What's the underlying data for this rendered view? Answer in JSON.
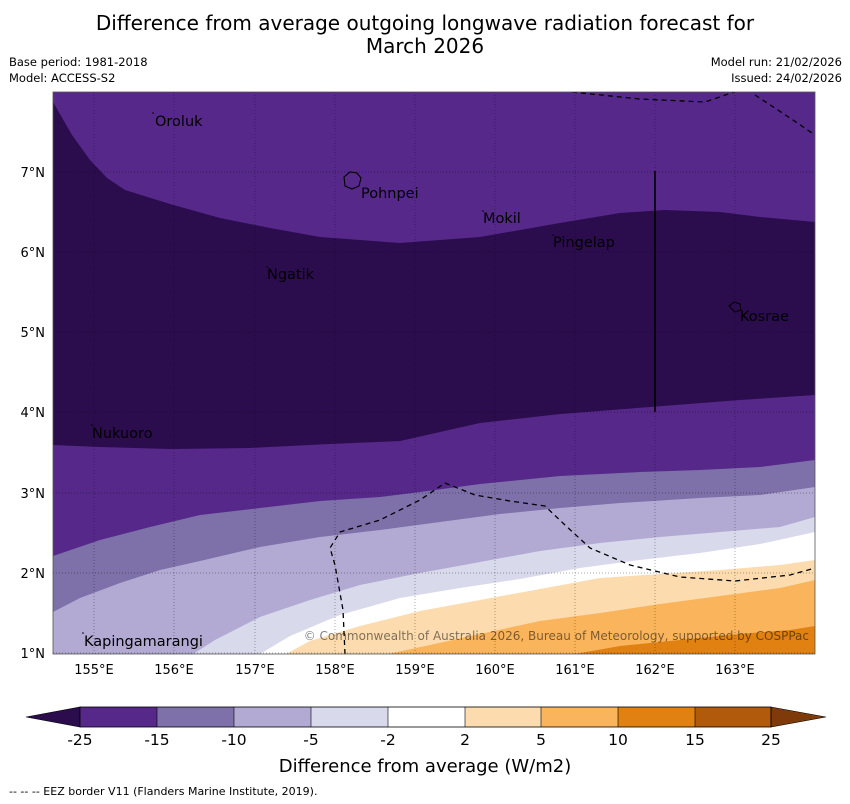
{
  "header": {
    "title_line1": "Difference from average outgoing longwave radiation forecast for",
    "title_line2": "March 2026",
    "base_period": "Base period: 1981-2018",
    "model": "Model: ACCESS-S2",
    "model_run": "Model run: 21/02/2026",
    "issued": "Issued: 24/02/2026"
  },
  "map": {
    "lat_labels": [
      "7°N",
      "6°N",
      "5°N",
      "4°N",
      "3°N",
      "2°N",
      "1°N"
    ],
    "lon_labels": [
      "155°E",
      "156°E",
      "157°E",
      "158°E",
      "159°E",
      "160°E",
      "161°E",
      "162°E",
      "163°E"
    ],
    "places": [
      "Oroluk",
      "Pohnpei",
      "Mokil",
      "Pingelap",
      "Ngatik",
      "Kosrae",
      "Nukuoro",
      "Kapingamarangi"
    ],
    "copyright": "© Commonwealth of Australia 2026, Bureau of Meteorology, supported by COSPPac"
  },
  "colorbar": {
    "ticks": [
      "-25",
      "-15",
      "-10",
      "-5",
      "-2",
      "2",
      "5",
      "10",
      "15",
      "25"
    ],
    "colors": [
      "#2b0c4d",
      "#55288a",
      "#7e70a9",
      "#b2aad2",
      "#d9d9ec",
      "#ffffff",
      "#fcdcae",
      "#f9b45c",
      "#e08112",
      "#b25a0b",
      "#7e3b09"
    ],
    "label": "Difference from average (W/m2)"
  },
  "footer": {
    "legend": "--  --  -- EEZ border V11 (Flanders Marine Institute, 2019)."
  }
}
